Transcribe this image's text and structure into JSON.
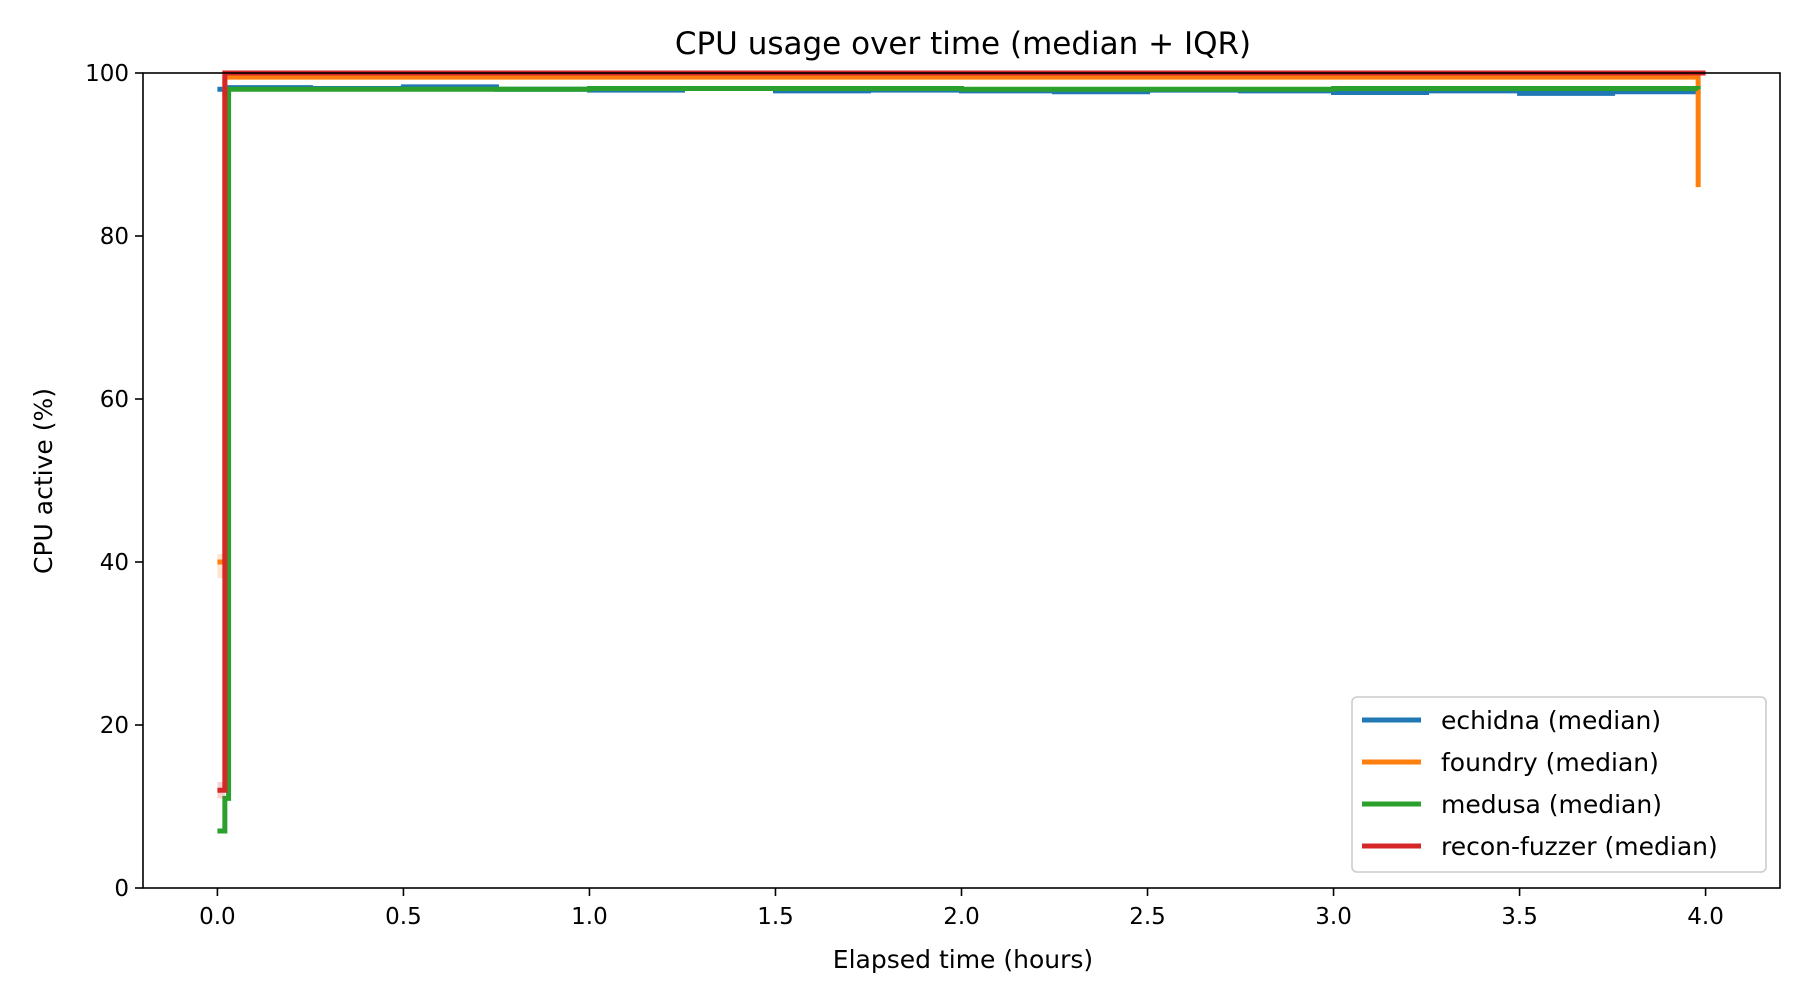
{
  "chart_data": {
    "type": "line",
    "title": "CPU usage over time (median + IQR)",
    "xlabel": "Elapsed time (hours)",
    "ylabel": "CPU active (%)",
    "xlim": [
      -0.2,
      4.2
    ],
    "ylim": [
      0,
      100
    ],
    "x_ticks": [
      0.0,
      0.5,
      1.0,
      1.5,
      2.0,
      2.5,
      3.0,
      3.5,
      4.0
    ],
    "x_tick_labels": [
      "0.0",
      "0.5",
      "1.0",
      "1.5",
      "2.0",
      "2.5",
      "3.0",
      "3.5",
      "4.0"
    ],
    "y_ticks": [
      0,
      20,
      40,
      60,
      80,
      100
    ],
    "y_tick_labels": [
      "0",
      "20",
      "40",
      "60",
      "80",
      "100"
    ],
    "grid": false,
    "legend_position": "bottom-right",
    "series": [
      {
        "name": "echidna (median)",
        "color": "#1f77b4",
        "x": [
          0.0,
          0.02,
          0.03,
          0.25,
          0.5,
          0.75,
          1.0,
          1.25,
          1.5,
          1.75,
          2.0,
          2.25,
          2.5,
          2.75,
          3.0,
          3.25,
          3.5,
          3.75,
          3.98
        ],
        "y": [
          98.0,
          97.5,
          98.2,
          98.1,
          98.3,
          98.0,
          97.9,
          98.1,
          97.8,
          97.9,
          97.8,
          97.7,
          97.9,
          97.8,
          97.6,
          97.8,
          97.5,
          97.7,
          97.8
        ]
      },
      {
        "name": "foundry (median)",
        "color": "#ff7f0e",
        "x": [
          0.0,
          0.01,
          0.02,
          1.0,
          2.0,
          3.0,
          3.97,
          3.98
        ],
        "y": [
          40.0,
          40.0,
          99.5,
          99.5,
          99.5,
          99.5,
          99.5,
          86.0
        ],
        "iqr_low": [
          38.0,
          38.0,
          99.3,
          99.3,
          99.3,
          99.3,
          99.3,
          81.0
        ],
        "iqr_high": [
          41.0,
          41.0,
          99.7,
          99.7,
          99.7,
          99.7,
          99.7,
          99.0
        ]
      },
      {
        "name": "medusa (median)",
        "color": "#2ca02c",
        "x": [
          0.0,
          0.02,
          0.03,
          1.0,
          2.0,
          3.0,
          3.98
        ],
        "y": [
          7.0,
          11.0,
          98.0,
          98.1,
          98.0,
          98.1,
          98.0
        ]
      },
      {
        "name": "recon-fuzzer (median)",
        "color": "#d62728",
        "x": [
          0.0,
          0.015,
          0.02,
          1.0,
          2.0,
          3.0,
          4.0
        ],
        "y": [
          12.0,
          12.0,
          100.0,
          100.0,
          100.0,
          100.0,
          100.0
        ],
        "iqr_low": [
          11.0,
          11.0,
          99.8,
          99.8,
          99.8,
          99.8,
          99.8
        ],
        "iqr_high": [
          13.0,
          13.0,
          100.0,
          100.0,
          100.0,
          100.0,
          100.0
        ]
      }
    ]
  }
}
